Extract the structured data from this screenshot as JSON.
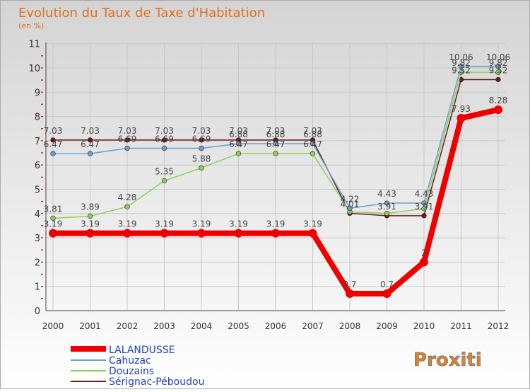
{
  "chart_data": {
    "type": "line",
    "title": "Evolution du Taux de Taxe d'Habitation",
    "subtitle": "(en %)",
    "ylim": [
      0,
      11
    ],
    "yticks": [
      "0",
      "1",
      "2",
      "3",
      "4",
      "5",
      "6",
      "7",
      "8",
      "9",
      "10",
      "11"
    ],
    "x": [
      "2000",
      "2001",
      "2002",
      "2003",
      "2004",
      "2005",
      "2006",
      "2007",
      "2008",
      "2009",
      "2010",
      "2011",
      "2012"
    ],
    "series": [
      {
        "name": "Sérignac-Péboudou",
        "color": "#6b1a1a",
        "values": [
          7.03,
          7.03,
          7.03,
          7.03,
          7.03,
          7.03,
          7.03,
          7.03,
          4.01,
          3.91,
          3.91,
          9.52,
          9.52
        ],
        "labels": [
          "7.03",
          "7.03",
          "7.03",
          "7.03",
          "7.03",
          "7.03",
          "7.03",
          "7.03",
          "4.01",
          "3.91",
          "3.91",
          "9.52",
          "9.52"
        ]
      },
      {
        "name": "Douzains",
        "color": "#8ecf5a",
        "values": [
          3.81,
          3.89,
          4.28,
          5.35,
          5.88,
          6.47,
          6.47,
          6.47,
          4.07,
          4.01,
          4.2,
          9.82,
          9.82
        ],
        "labels": [
          "3.81",
          "3.89",
          "4.28",
          "5.35",
          "5.88",
          "6.47",
          "6.47",
          "6.47",
          "",
          "",
          "",
          "9.82",
          "9.82"
        ]
      },
      {
        "name": "Cahuzac",
        "color": "#6a9fcf",
        "values": [
          6.47,
          6.47,
          6.69,
          6.69,
          6.69,
          6.88,
          6.88,
          6.88,
          4.22,
          4.43,
          4.43,
          10.06,
          10.06
        ],
        "labels": [
          "6.47",
          "6.47",
          "6.69",
          "6.69",
          "6.69",
          "6.88",
          "6.88",
          "6.88",
          "4.22",
          "4.43",
          "4.43",
          "10.06",
          "10.06"
        ]
      },
      {
        "name": "LALANDUSSE",
        "color": "#ee0000",
        "values": [
          3.19,
          3.19,
          3.19,
          3.19,
          3.19,
          3.19,
          3.19,
          3.19,
          0.7,
          0.7,
          2.0,
          7.93,
          8.28
        ],
        "labels": [
          "3.19",
          "3.19",
          "3.19",
          "3.19",
          "3.19",
          "3.19",
          "3.19",
          "3.19",
          "0.7",
          "0.7",
          "2",
          "7.93",
          "8.28"
        ]
      }
    ],
    "legend": [
      "LALANDUSSE",
      "Cahuzac",
      "Douzains",
      "Sérignac-Péboudou"
    ]
  },
  "logo": {
    "text": "Proxiti"
  }
}
